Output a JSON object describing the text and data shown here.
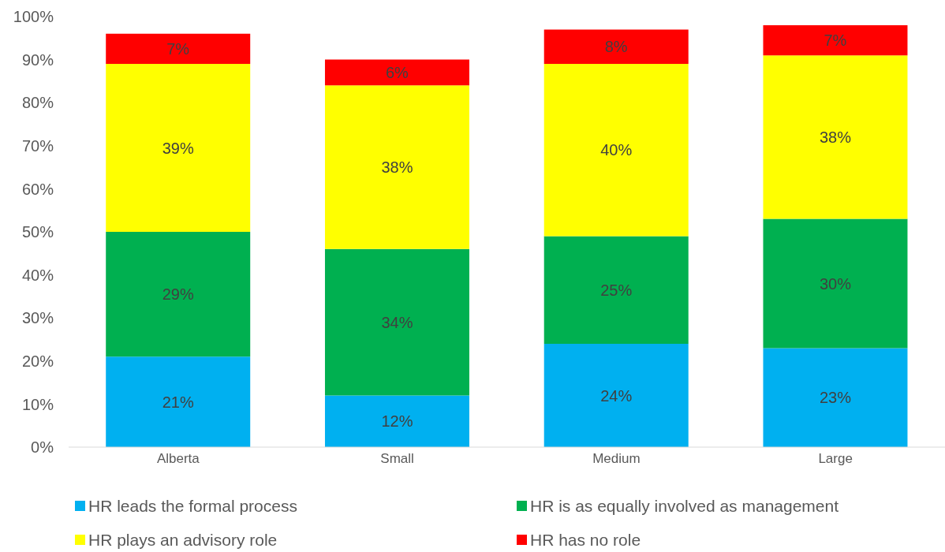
{
  "chart_data": {
    "type": "bar",
    "stacked": true,
    "categories": [
      "Alberta",
      "Small",
      "Medium",
      "Large"
    ],
    "series": [
      {
        "name": "HR leads the formal process",
        "color": "#00b0f0",
        "values": [
          21,
          12,
          24,
          23
        ],
        "value_labels": [
          "21%",
          "12%",
          "24%",
          "23%"
        ]
      },
      {
        "name": "HR is as equally involved as management",
        "color": "#00b050",
        "values": [
          29,
          34,
          25,
          30
        ],
        "value_labels": [
          "29%",
          "34%",
          "25%",
          "30%"
        ]
      },
      {
        "name": "HR plays an advisory role",
        "color": "#ffff00",
        "values": [
          39,
          38,
          40,
          38
        ],
        "value_labels": [
          "39%",
          "38%",
          "40%",
          "38%"
        ]
      },
      {
        "name": "HR has no role",
        "color": "#ff0000",
        "values": [
          7,
          6,
          8,
          7
        ],
        "value_labels": [
          "7%",
          "6%",
          "8%",
          "7%"
        ]
      }
    ],
    "ylim": [
      0,
      100
    ],
    "yticks": [
      {
        "value": 0,
        "label": "0%"
      },
      {
        "value": 10,
        "label": "10%"
      },
      {
        "value": 20,
        "label": "20%"
      },
      {
        "value": 30,
        "label": "30%"
      },
      {
        "value": 40,
        "label": "40%"
      },
      {
        "value": 50,
        "label": "50%"
      },
      {
        "value": 60,
        "label": "60%"
      },
      {
        "value": 70,
        "label": "70%"
      },
      {
        "value": 80,
        "label": "80%"
      },
      {
        "value": 90,
        "label": "90%"
      },
      {
        "value": 100,
        "label": "100%"
      }
    ],
    "legend": "bottom"
  }
}
